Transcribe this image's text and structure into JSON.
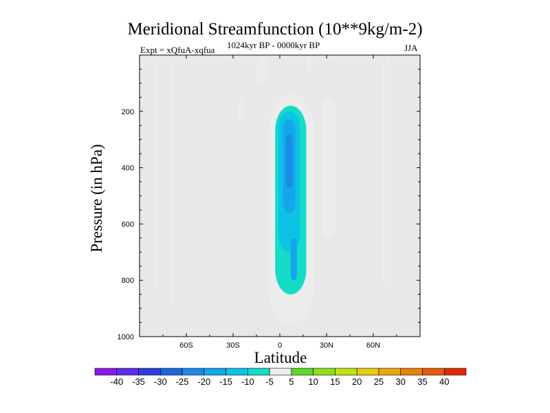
{
  "chart_data": {
    "type": "contour",
    "title": "Meridional Streamfunction (10**9kg/m-2)",
    "subtitle": "1024kyr BP - 0000kyr BP",
    "experiment": "Expt = xQfuA-xqfua",
    "season": "JJA",
    "xlabel": "Latitude",
    "ylabel": "Pressure (in hPa)",
    "xlim": [
      -90,
      90
    ],
    "ylim": [
      1000,
      0
    ],
    "x_ticks": [
      {
        "value": -60,
        "label": "60S"
      },
      {
        "value": -30,
        "label": "30S"
      },
      {
        "value": 0,
        "label": "0"
      },
      {
        "value": 30,
        "label": "30N"
      },
      {
        "value": 60,
        "label": "60N"
      }
    ],
    "y_ticks": [
      {
        "value": 200,
        "label": "200"
      },
      {
        "value": 400,
        "label": "400"
      },
      {
        "value": 600,
        "label": "600"
      },
      {
        "value": 800,
        "label": "800"
      },
      {
        "value": 1000,
        "label": "1000"
      }
    ],
    "colorbar": {
      "labels": [
        "-40",
        "-35",
        "-30",
        "-25",
        "-20",
        "-15",
        "-10",
        "-5",
        "5",
        "10",
        "15",
        "20",
        "25",
        "30",
        "35",
        "40"
      ],
      "colors": [
        "#8a1ae6",
        "#5a2ee6",
        "#2f3fd8",
        "#1f64e0",
        "#1a8ae6",
        "#13a6ea",
        "#0ec2e6",
        "#14dcc8",
        "#ececec",
        "#5fd82a",
        "#8ede1c",
        "#c2e014",
        "#e6cc10",
        "#e6a80e",
        "#e6820c",
        "#e6580a",
        "#dc2a06"
      ]
    },
    "background_color": "#e8e8e8",
    "regions": [
      {
        "level": -5,
        "lat": [
          -80,
          -78
        ],
        "p": [
          20,
          820
        ]
      },
      {
        "level": -5,
        "lat": [
          -70,
          -68
        ],
        "p": [
          20,
          870
        ]
      },
      {
        "level": -5,
        "lat": [
          -27,
          -23
        ],
        "p": [
          160,
          230
        ]
      },
      {
        "level": -5,
        "lat": [
          -7,
          22
        ],
        "p": [
          140,
          955
        ]
      },
      {
        "level": -5,
        "lat": [
          65,
          67
        ],
        "p": [
          20,
          800
        ]
      },
      {
        "level": -10,
        "lat": [
          -3,
          17
        ],
        "p": [
          180,
          850
        ]
      },
      {
        "level": -15,
        "lat": [
          -1,
          13
        ],
        "p": [
          200,
          700
        ]
      },
      {
        "level": -20,
        "lat": [
          2,
          10
        ],
        "p": [
          230,
          560
        ]
      },
      {
        "level": -25,
        "lat": [
          4,
          8
        ],
        "p": [
          280,
          470
        ]
      },
      {
        "level": -20,
        "lat": [
          7,
          11
        ],
        "p": [
          650,
          800
        ]
      },
      {
        "level": 5,
        "lat": [
          -15,
          -8
        ],
        "p": [
          0,
          100
        ]
      },
      {
        "level": 5,
        "lat": [
          17,
          21
        ],
        "p": [
          0,
          60
        ]
      },
      {
        "level": 5,
        "lat": [
          27,
          36
        ],
        "p": [
          150,
          650
        ]
      },
      {
        "level": 5,
        "lat": [
          69,
          70
        ],
        "p": [
          0,
          820
        ]
      }
    ]
  }
}
